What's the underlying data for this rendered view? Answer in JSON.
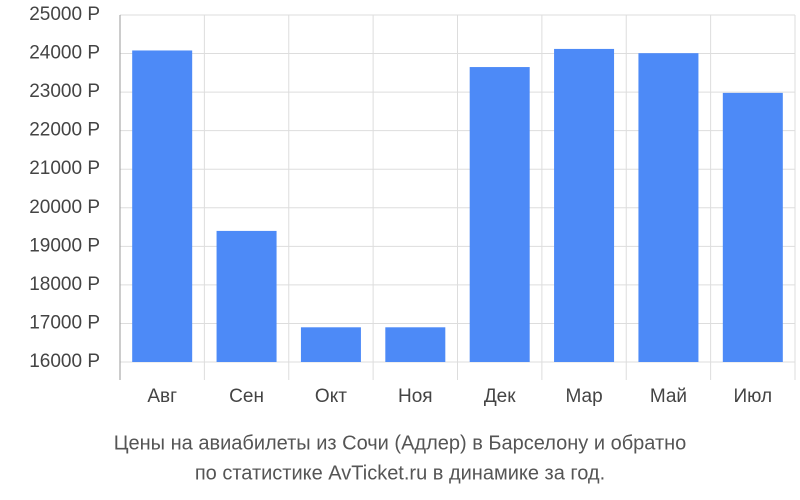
{
  "chart_data": {
    "type": "bar",
    "categories": [
      "Авг",
      "Сен",
      "Окт",
      "Ноя",
      "Дек",
      "Мар",
      "Май",
      "Июл"
    ],
    "values": [
      24080,
      19400,
      16900,
      16900,
      23650,
      24120,
      24010,
      22980
    ],
    "color": "#4d8af7",
    "ylim": [
      16000,
      25000
    ],
    "yticks": [
      {
        "value": 16000,
        "label": "16000 Р"
      },
      {
        "value": 17000,
        "label": "17000 Р"
      },
      {
        "value": 18000,
        "label": "18000 Р"
      },
      {
        "value": 19000,
        "label": "19000 Р"
      },
      {
        "value": 20000,
        "label": "20000 Р"
      },
      {
        "value": 21000,
        "label": "21000 Р"
      },
      {
        "value": 22000,
        "label": "22000 Р"
      },
      {
        "value": 23000,
        "label": "23000 Р"
      },
      {
        "value": 24000,
        "label": "24000 Р"
      },
      {
        "value": 25000,
        "label": "25000 Р"
      }
    ],
    "grid": true,
    "caption": [
      "Цены на авиабилеты из Сочи (Адлер) в Барселону и обратно",
      "по статистике AvTicket.ru в динамике за год."
    ]
  }
}
